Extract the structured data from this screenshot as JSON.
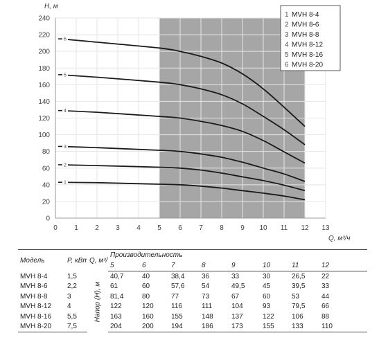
{
  "chart_data": {
    "type": "line",
    "title": "",
    "xlabel": "Q, м³/ч",
    "ylabel": "Н, м",
    "xlim": [
      0,
      13
    ],
    "ylim": [
      0,
      240
    ],
    "x_ticks": [
      0,
      1,
      2,
      3,
      4,
      5,
      6,
      7,
      8,
      9,
      10,
      11,
      12,
      13
    ],
    "y_ticks": [
      0,
      20,
      40,
      60,
      80,
      100,
      120,
      140,
      160,
      180,
      200,
      220,
      240
    ],
    "grid": true,
    "shaded_region": [
      5,
      12
    ],
    "legend_position": "top-right",
    "legend": [
      {
        "num": "1",
        "name": "MVH 8-4"
      },
      {
        "num": "2",
        "name": "MVH 8-6"
      },
      {
        "num": "3",
        "name": "MVH 8-8"
      },
      {
        "num": "4",
        "name": "MVH 8-12"
      },
      {
        "num": "5",
        "name": "MVH 8-16"
      },
      {
        "num": "6",
        "name": "MVH 8-20"
      }
    ],
    "series": [
      {
        "label": "1",
        "x": [
          0,
          2,
          5,
          6,
          7,
          8,
          9,
          10,
          11,
          12
        ],
        "y": [
          43,
          42.5,
          40.7,
          40,
          38.4,
          36,
          33,
          30,
          26.5,
          22
        ]
      },
      {
        "label": "2",
        "x": [
          0,
          2,
          5,
          6,
          7,
          8,
          9,
          10,
          11,
          12
        ],
        "y": [
          64,
          63,
          61,
          60,
          57.6,
          54,
          49.5,
          45,
          39.5,
          33
        ]
      },
      {
        "label": "3",
        "x": [
          0,
          2,
          5,
          6,
          7,
          8,
          9,
          10,
          11,
          12
        ],
        "y": [
          86,
          84.5,
          81.4,
          80,
          77,
          73,
          67,
          60,
          53,
          44
        ]
      },
      {
        "label": "4",
        "x": [
          0,
          2,
          5,
          6,
          7,
          8,
          9,
          10,
          11,
          12
        ],
        "y": [
          129,
          127,
          122,
          120,
          116,
          111,
          104,
          93,
          79.5,
          66
        ]
      },
      {
        "label": "5",
        "x": [
          0,
          2,
          5,
          6,
          7,
          8,
          9,
          10,
          11,
          12
        ],
        "y": [
          172,
          169,
          163,
          160,
          155,
          148,
          137,
          122,
          106,
          88
        ]
      },
      {
        "label": "6",
        "x": [
          0,
          2,
          5,
          6,
          7,
          8,
          9,
          10,
          11,
          12
        ],
        "y": [
          215,
          211,
          204,
          200,
          194,
          186,
          173,
          155,
          133,
          110
        ]
      }
    ]
  },
  "table": {
    "col_model": "Модель",
    "col_power": "P, кВт",
    "col_flow": "Q, м³/ч",
    "col_capacity": "Производительность",
    "col_head": "Напор (Н), м",
    "flow_values": [
      "5",
      "6",
      "7",
      "8",
      "9",
      "10",
      "11",
      "12"
    ],
    "rows": [
      {
        "model": "MVH 8-4",
        "power": "1,5",
        "values": [
          "40,7",
          "40",
          "38,4",
          "36",
          "33",
          "30",
          "26,5",
          "22"
        ]
      },
      {
        "model": "MVH 8-6",
        "power": "2,2",
        "values": [
          "61",
          "60",
          "57,6",
          "54",
          "49,5",
          "45",
          "39,5",
          "33"
        ]
      },
      {
        "model": "MVH 8-8",
        "power": "3",
        "values": [
          "81,4",
          "80",
          "77",
          "73",
          "67",
          "60",
          "53",
          "44"
        ]
      },
      {
        "model": "MVH 8-12",
        "power": "4",
        "values": [
          "122",
          "120",
          "116",
          "111",
          "104",
          "93",
          "79,5",
          "66"
        ]
      },
      {
        "model": "MVH 8-16",
        "power": "5,5",
        "values": [
          "163",
          "160",
          "155",
          "148",
          "137",
          "122",
          "106",
          "88"
        ]
      },
      {
        "model": "MVH 8-20",
        "power": "7,5",
        "values": [
          "204",
          "200",
          "194",
          "186",
          "173",
          "155",
          "133",
          "110"
        ]
      }
    ]
  }
}
